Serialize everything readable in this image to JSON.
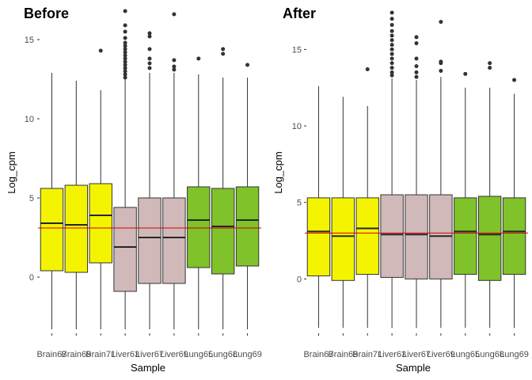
{
  "chart_data": [
    {
      "type": "boxplot",
      "title": "Before",
      "xlabel": "Sample",
      "ylabel": "Log_cpm",
      "ylim": [
        -3.5,
        16.7
      ],
      "yticks": [
        0,
        5,
        10,
        15
      ],
      "grid": false,
      "hline": {
        "value": 3.1,
        "color": "#d40000"
      },
      "categories": [
        "Brain67",
        "Brain69",
        "Brain71",
        "Liver63",
        "Liver67",
        "Liver69",
        "Lung65",
        "Lung68",
        "Lung69"
      ],
      "colors": [
        "#f4f400",
        "#f4f400",
        "#f4f400",
        "#d1b9b9",
        "#d1b9b9",
        "#d1b9b9",
        "#80c22a",
        "#80c22a",
        "#80c22a"
      ],
      "boxes": [
        {
          "min": -3.3,
          "q1": 0.4,
          "median": 3.4,
          "q3": 5.6,
          "max": 12.9,
          "outliers": []
        },
        {
          "min": -3.3,
          "q1": 0.3,
          "median": 3.3,
          "q3": 5.8,
          "max": 12.4,
          "outliers": []
        },
        {
          "min": -3.3,
          "q1": 0.9,
          "median": 3.9,
          "q3": 5.9,
          "max": 11.8,
          "outliers": [
            14.3
          ]
        },
        {
          "min": -3.3,
          "q1": -0.9,
          "median": 1.9,
          "q3": 4.4,
          "max": 12.5,
          "outliers": [
            12.6,
            12.8,
            13.0,
            13.2,
            13.4,
            13.6,
            13.8,
            14.0,
            14.2,
            14.4,
            14.6,
            14.8,
            15.1,
            15.5,
            15.9,
            16.8
          ]
        },
        {
          "min": -3.3,
          "q1": -0.4,
          "median": 2.5,
          "q3": 5.0,
          "max": 12.9,
          "outliers": [
            13.2,
            13.5,
            13.8,
            14.4,
            15.2,
            15.4
          ]
        },
        {
          "min": -3.3,
          "q1": -0.4,
          "median": 2.5,
          "q3": 5.0,
          "max": 12.9,
          "outliers": [
            13.1,
            13.3,
            13.7,
            16.6
          ]
        },
        {
          "min": -3.3,
          "q1": 0.6,
          "median": 3.6,
          "q3": 5.7,
          "max": 12.8,
          "outliers": [
            13.8
          ]
        },
        {
          "min": -3.3,
          "q1": 0.2,
          "median": 3.2,
          "q3": 5.6,
          "max": 12.6,
          "outliers": [
            14.1,
            14.4
          ]
        },
        {
          "min": -3.3,
          "q1": 0.7,
          "median": 3.6,
          "q3": 5.7,
          "max": 12.6,
          "outliers": [
            13.4
          ]
        }
      ]
    },
    {
      "type": "boxplot",
      "title": "After",
      "xlabel": "Sample",
      "ylabel": "Log_cpm",
      "ylim": [
        -3.5,
        17.4
      ],
      "yticks": [
        0,
        5,
        10,
        15
      ],
      "grid": false,
      "hline": {
        "value": 3.0,
        "color": "#d40000"
      },
      "categories": [
        "Brain67",
        "Brain69",
        "Brain71",
        "Liver63",
        "Liver67",
        "Liver69",
        "Lung65",
        "Lung68",
        "Lung69"
      ],
      "colors": [
        "#f4f400",
        "#f4f400",
        "#f4f400",
        "#d1b9b9",
        "#d1b9b9",
        "#d1b9b9",
        "#80c22a",
        "#80c22a",
        "#80c22a"
      ],
      "boxes": [
        {
          "min": -3.2,
          "q1": 0.2,
          "median": 3.1,
          "q3": 5.3,
          "max": 12.6,
          "outliers": []
        },
        {
          "min": -3.2,
          "q1": -0.1,
          "median": 2.8,
          "q3": 5.3,
          "max": 11.9,
          "outliers": []
        },
        {
          "min": -3.2,
          "q1": 0.3,
          "median": 3.3,
          "q3": 5.3,
          "max": 11.3,
          "outliers": [
            13.7
          ]
        },
        {
          "min": -3.2,
          "q1": 0.1,
          "median": 2.9,
          "q3": 5.5,
          "max": 13.1,
          "outliers": [
            13.3,
            13.5,
            13.8,
            14.1,
            14.4,
            14.7,
            15.0,
            15.3,
            15.6,
            15.9,
            16.2,
            16.6,
            17.0,
            17.4
          ]
        },
        {
          "min": -3.2,
          "q1": 0.0,
          "median": 2.9,
          "q3": 5.5,
          "max": 13.0,
          "outliers": [
            13.2,
            13.5,
            13.9,
            14.4,
            15.4,
            15.8
          ]
        },
        {
          "min": -3.2,
          "q1": 0.0,
          "median": 2.8,
          "q3": 5.5,
          "max": 13.2,
          "outliers": [
            13.6,
            14.1,
            14.2,
            16.8
          ]
        },
        {
          "min": -3.2,
          "q1": 0.3,
          "median": 3.1,
          "q3": 5.3,
          "max": 12.5,
          "outliers": [
            13.4
          ]
        },
        {
          "min": -3.2,
          "q1": -0.1,
          "median": 2.9,
          "q3": 5.4,
          "max": 12.5,
          "outliers": [
            13.8,
            14.1
          ]
        },
        {
          "min": -3.2,
          "q1": 0.3,
          "median": 3.1,
          "q3": 5.3,
          "max": 12.1,
          "outliers": [
            13.0
          ]
        }
      ]
    }
  ]
}
